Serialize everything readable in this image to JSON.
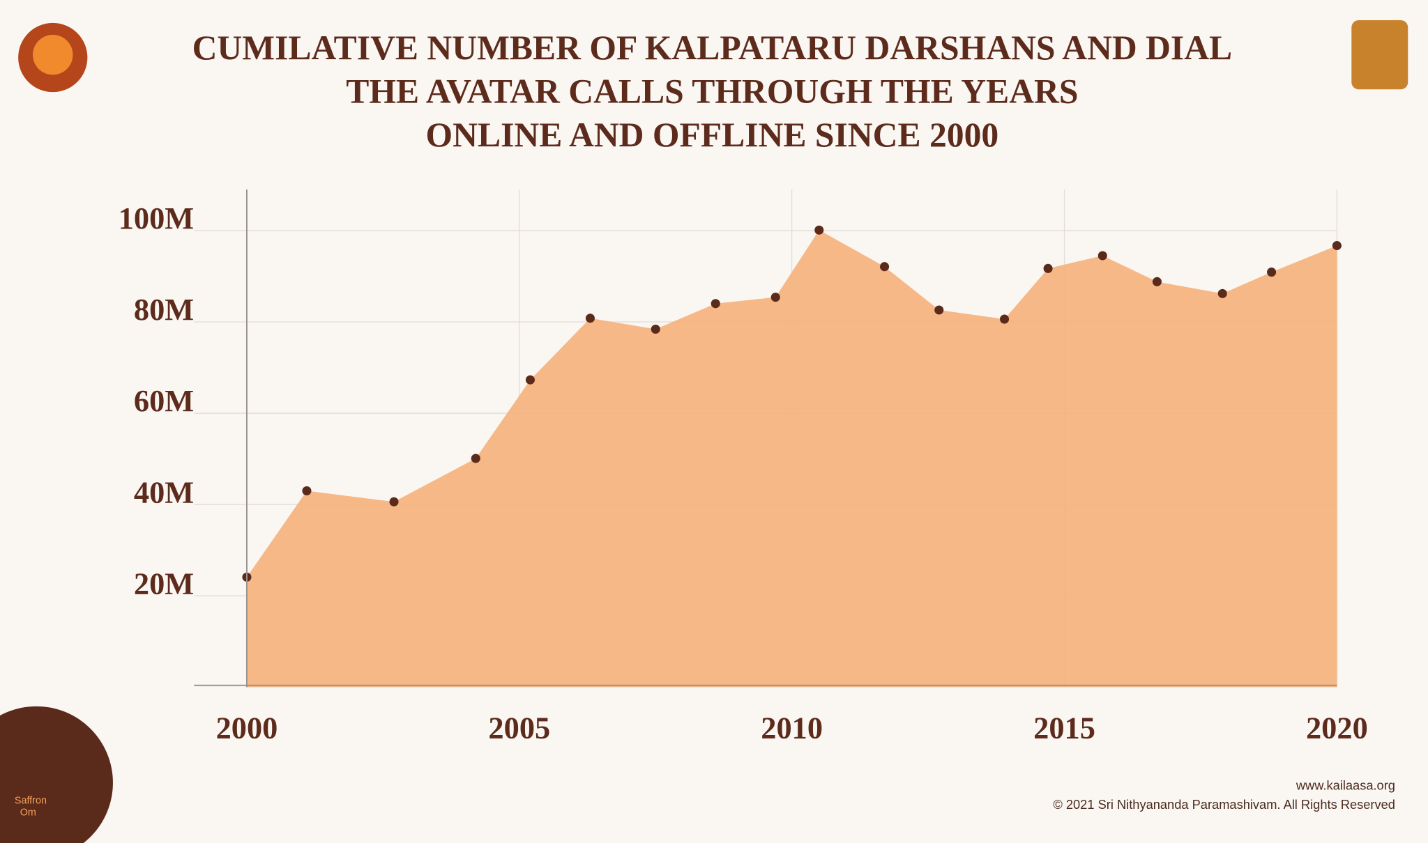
{
  "chart_data": {
    "type": "area",
    "title": [
      "CUMILATIVE NUMBER OF KALPATARU DARSHANS AND DIAL",
      "THE AVATAR CALLS THROUGH THE YEARS",
      "ONLINE AND OFFLINE SINCE 2000"
    ],
    "x": [
      2000,
      2001.1,
      2002.7,
      2004.2,
      2005.2,
      2006.3,
      2007.5,
      2008.6,
      2009.7,
      2010.5,
      2011.7,
      2012.7,
      2013.9,
      2014.7,
      2015.7,
      2016.7,
      2017.9,
      2018.8,
      2020
    ],
    "values": [
      24.1,
      43,
      40.6,
      50.1,
      67.3,
      80.8,
      78.4,
      84,
      85.4,
      100.1,
      92.1,
      82.6,
      80.6,
      91.7,
      94.5,
      88.8,
      86.2,
      90.9,
      96.7
    ],
    "color": "#f5b27d",
    "marker_color": "#5a2a1a",
    "xlim": [
      2000,
      2020
    ],
    "xticks": [
      2000,
      2005,
      2010,
      2015,
      2020
    ],
    "ylim": [
      0,
      109
    ],
    "yticks": [
      {
        "value": 20,
        "label": "20M"
      },
      {
        "value": 40,
        "label": "40M"
      },
      {
        "value": 60,
        "label": "60M"
      },
      {
        "value": 80,
        "label": "80M"
      },
      {
        "value": 100,
        "label": "100M"
      }
    ],
    "grid": true
  },
  "footer": {
    "url": "www.kailaasa.org",
    "copyright": "© 2021 Sri Nithyananda Paramashivam. All Rights Reserved"
  },
  "logo": {
    "text": [
      "Saffron",
      "Om"
    ]
  }
}
